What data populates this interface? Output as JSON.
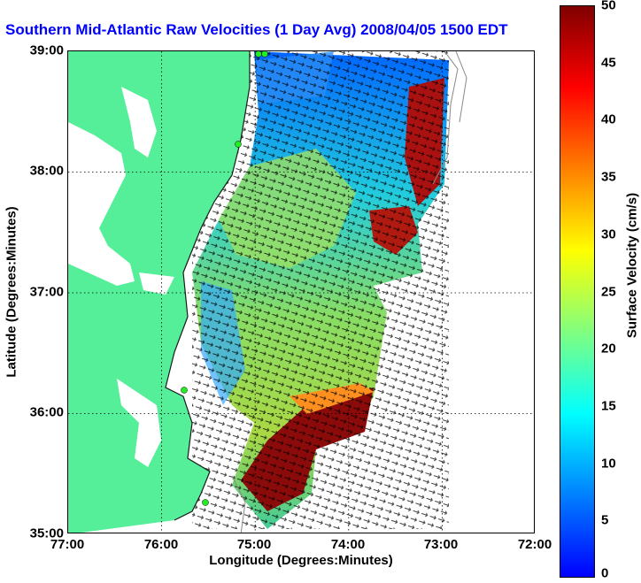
{
  "title": "Southern Mid-Atlantic Raw Velocities (1 Day Avg) 2008/04/05 1500 EDT",
  "xlabel": "Longitude (Degrees:Minutes)",
  "ylabel": "Latitude (Degrees:Minutes)",
  "colorbar_label": "Surface Velocity (cm/s)",
  "x_ticks": [
    "77:00",
    "76:00",
    "75:00",
    "74:00",
    "73:00",
    "72:00"
  ],
  "y_ticks": [
    "39:00",
    "38:00",
    "37:00",
    "36:00",
    "35:00"
  ],
  "colorbar_ticks": [
    "50",
    "45",
    "40",
    "35",
    "30",
    "25",
    "20",
    "15",
    "10",
    "5",
    "0"
  ],
  "colors": {
    "title": "#0000ff",
    "land": "#55ee99",
    "coast": "#1a1a1a"
  },
  "colormap": [
    "#0000ff",
    "#0080ff",
    "#00ffff",
    "#80ff80",
    "#ffff00",
    "#ff8000",
    "#ff0000",
    "#800000"
  ],
  "map": {
    "lon_range": [
      -77,
      -72
    ],
    "lat_range": [
      35,
      39
    ],
    "grid": "dotted",
    "colorbar_range": [
      0,
      50
    ]
  }
}
